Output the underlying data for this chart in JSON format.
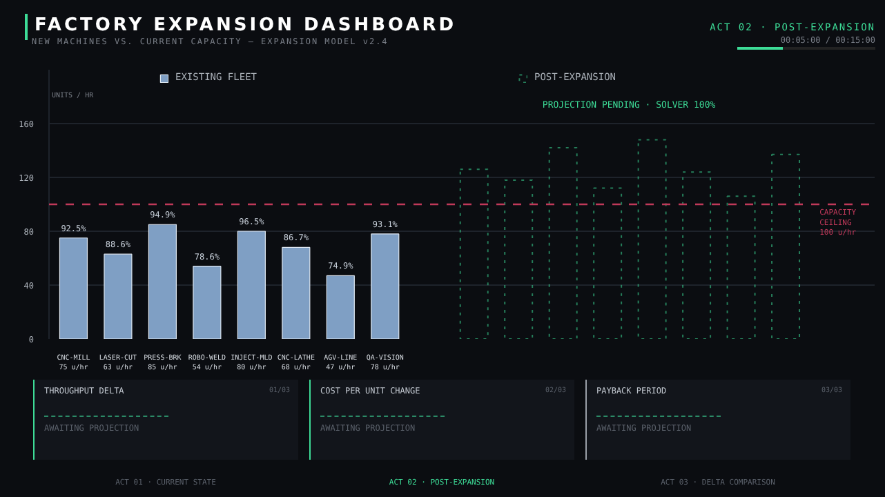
{
  "chart_data": {
    "type": "bar",
    "title": "FACTORY EXPANSION DASHBOARD",
    "subtitle": "NEW MACHINES VS. CURRENT CAPACITY — EXPANSION MODEL v2.4",
    "ylabel": "UNITS / HR",
    "categories": [
      "CNC-MILL\n75 u/hr",
      "LASER-CUT\n63 u/hr",
      "PRESS-BRK\n85 u/hr",
      "ROBO-WELD\n54 u/hr",
      "INJECT-MLD\n80 u/hr",
      "CNC-LATHE\n68 u/hr",
      "AGV-LINE\n47 u/hr",
      "QA-VISION\n78 u/hr",
      null,
      null,
      null,
      null,
      null,
      null,
      null,
      null,
      null
    ],
    "series": [
      {
        "name": "EXISTING FLEET",
        "color": "#7f9fc4",
        "line_style": "solid",
        "values": [
          75,
          63,
          85,
          54,
          80,
          68,
          47,
          78,
          null,
          null,
          null,
          null,
          null,
          null,
          null,
          null,
          null
        ]
      },
      {
        "name": "POST-EXPANSION",
        "color": "#3ddc97",
        "line_style": "dotted",
        "values": [
          null,
          null,
          null,
          null,
          null,
          null,
          null,
          null,
          null,
          126,
          118,
          142,
          112,
          148,
          124,
          106,
          137
        ]
      }
    ],
    "ylim": [
      0,
      200
    ],
    "yticks": [
      0,
      40,
      80,
      120,
      160
    ],
    "grid": "y",
    "legend": "top",
    "ref_lines": [
      {
        "axis": "y",
        "value": 100,
        "label": "CAPACITY\nCEILING\n100 u/hr",
        "color": "#c0395a",
        "line_style": "dashed"
      }
    ],
    "annotations": [
      "PROJECTION PENDING · SOLVER 100%",
      {
        "text": "92.5%",
        "x": "CNC-MILL\n75 u/hr",
        "y": 75
      },
      {
        "text": "88.6%",
        "x": "LASER-CUT\n63 u/hr",
        "y": 63
      },
      {
        "text": "94.9%",
        "x": "PRESS-BRK\n85 u/hr",
        "y": 85
      },
      {
        "text": "78.6%",
        "x": "ROBO-WELD\n54 u/hr",
        "y": 54
      },
      {
        "text": "96.5%",
        "x": "INJECT-MLD\n80 u/hr",
        "y": 80
      },
      {
        "text": "86.7%",
        "x": "CNC-LATHE\n68 u/hr",
        "y": 68
      },
      {
        "text": "74.9%",
        "x": "AGV-LINE\n47 u/hr",
        "y": 47
      },
      {
        "text": "93.1%",
        "x": "QA-VISION\n78 u/hr",
        "y": 78
      },
      "ACT 02 · POST-EXPANSION",
      "00:05:00 / 00:15:00",
      "THROUGHPUT DELTA",
      "01/03",
      "AWAITING PROJECTION",
      "COST PER UNIT CHANGE",
      "02/03",
      "AWAITING PROJECTION",
      "PAYBACK PERIOD",
      "03/03",
      "AWAITING PROJECTION",
      "ACT 01 · CURRENT STATE",
      "ACT 02 · POST-EXPANSION",
      "ACT 03 · DELTA COMPARISON"
    ]
  }
}
